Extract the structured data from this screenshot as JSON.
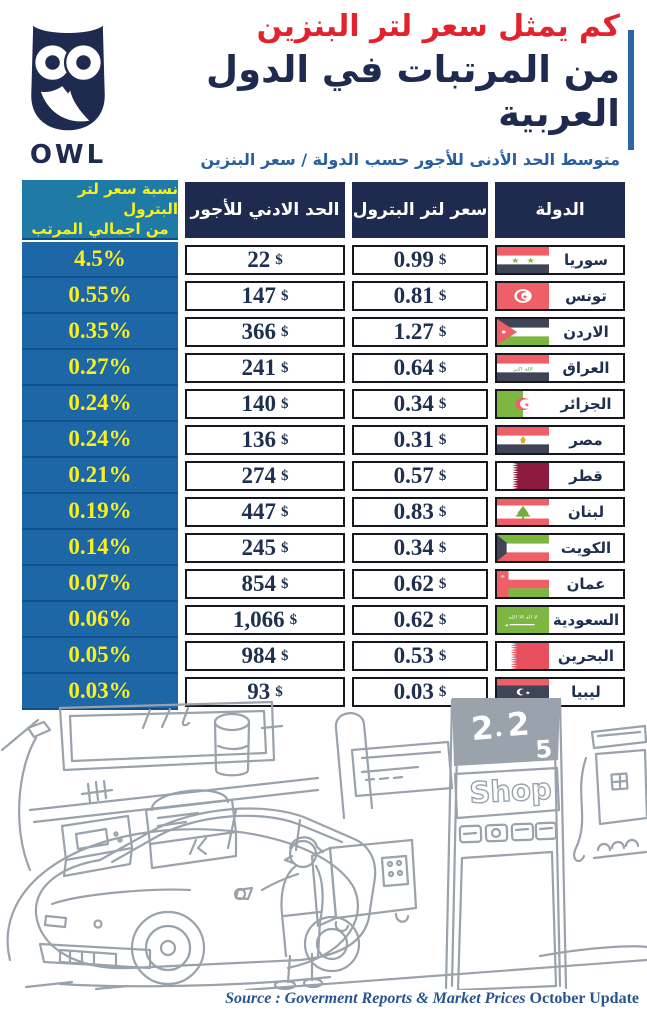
{
  "header": {
    "logo_text": "OWL",
    "title_line1": "كم يمثل سعر لتر البنزين",
    "title_line2": "من المرتبات في الدول العربية",
    "subtitle": "متوسط الحد الأدنى للأجور حسب الدولة / سعر البنزين"
  },
  "table": {
    "columns": {
      "percent_line1": "نسبة سعر لتر البترول",
      "percent_line2": "من اجمالي المرتب",
      "wage": "الحد الادني للأجور",
      "price": "سعر لتر البترول",
      "country": "الدولة"
    },
    "currency": "$",
    "rows": [
      {
        "country": "سوريا",
        "flag": "syria",
        "price": "0.99",
        "wage": "22",
        "percent": "4.5%"
      },
      {
        "country": "تونس",
        "flag": "tunisia",
        "price": "0.81",
        "wage": "147",
        "percent": "0.55%"
      },
      {
        "country": "الاردن",
        "flag": "jordan",
        "price": "1.27",
        "wage": "366",
        "percent": "0.35%"
      },
      {
        "country": "العراق",
        "flag": "iraq",
        "price": "0.64",
        "wage": "241",
        "percent": "0.27%"
      },
      {
        "country": "الجزائر",
        "flag": "algeria",
        "price": "0.34",
        "wage": "140",
        "percent": "0.24%"
      },
      {
        "country": "مصر",
        "flag": "egypt",
        "price": "0.31",
        "wage": "136",
        "percent": "0.24%"
      },
      {
        "country": "قطر",
        "flag": "qatar",
        "price": "0.57",
        "wage": "274",
        "percent": "0.21%"
      },
      {
        "country": "لبنان",
        "flag": "lebanon",
        "price": "0.83",
        "wage": "447",
        "percent": "0.19%"
      },
      {
        "country": "الكويت",
        "flag": "kuwait",
        "price": "0.34",
        "wage": "245",
        "percent": "0.14%"
      },
      {
        "country": "عمان",
        "flag": "oman",
        "price": "0.62",
        "wage": "854",
        "percent": "0.07%"
      },
      {
        "country": "السعودية",
        "flag": "saudi",
        "price": "0.62",
        "wage": "1,066",
        "percent": "0.06%"
      },
      {
        "country": "البحرين",
        "flag": "bahrain",
        "price": "0.53",
        "wage": "984",
        "percent": "0.05%"
      },
      {
        "country": "ليبيا",
        "flag": "libya",
        "price": "0.03",
        "wage": "93",
        "percent": "0.03%"
      }
    ]
  },
  "illustration": {
    "sign_digits": [
      "2",
      "2",
      "5"
    ],
    "shop_label": "Shop"
  },
  "footer": {
    "source_italic": "Source : Goverment Reports & Market Prices",
    "source_regular": " October Update"
  },
  "colors": {
    "accent_red": "#e2232d",
    "navy": "#1e2b4e",
    "percent_column_blue": "#1d67a7",
    "percent_header_teal": "#1f7ba5",
    "highlight_yellow": "#f8ef1e",
    "subtitle_blue": "#2a5f9e",
    "source_blue": "#27538f",
    "sketch_gray": "#9aa2ac"
  }
}
